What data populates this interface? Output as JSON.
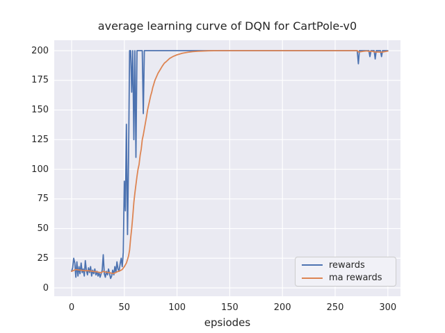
{
  "figure": {
    "background": "#ffffff",
    "axes_background": "#eaeaf2",
    "grid_color": "#ffffff",
    "text_color": "#262626"
  },
  "chart_data": {
    "type": "line",
    "title": "average learning curve of DQN for CartPole-v0",
    "xlabel": "epsiodes",
    "ylabel": "",
    "xlim": [
      -16.5,
      312
    ],
    "ylim": [
      -7,
      208.8
    ],
    "xticks": [
      0,
      50,
      100,
      150,
      200,
      250,
      300
    ],
    "yticks": [
      0,
      25,
      50,
      75,
      100,
      125,
      150,
      175,
      200
    ],
    "grid": true,
    "legend_position": "lower right",
    "series": [
      {
        "name": "rewards",
        "color": "#4C72B0",
        "points": [
          [
            0,
            14
          ],
          [
            1,
            17
          ],
          [
            2,
            25
          ],
          [
            3,
            21
          ],
          [
            4,
            9
          ],
          [
            5,
            22
          ],
          [
            6,
            10
          ],
          [
            7,
            18
          ],
          [
            8,
            12
          ],
          [
            9,
            21
          ],
          [
            10,
            13
          ],
          [
            11,
            16
          ],
          [
            12,
            10
          ],
          [
            13,
            23
          ],
          [
            14,
            15
          ],
          [
            15,
            11
          ],
          [
            16,
            17
          ],
          [
            17,
            13
          ],
          [
            18,
            18
          ],
          [
            19,
            10
          ],
          [
            20,
            15
          ],
          [
            21,
            12
          ],
          [
            22,
            16
          ],
          [
            23,
            11
          ],
          [
            24,
            14
          ],
          [
            25,
            10
          ],
          [
            26,
            13
          ],
          [
            27,
            9
          ],
          [
            28,
            12
          ],
          [
            29,
            15
          ],
          [
            30,
            28
          ],
          [
            31,
            12
          ],
          [
            32,
            9
          ],
          [
            33,
            14
          ],
          [
            34,
            11
          ],
          [
            35,
            16
          ],
          [
            36,
            12
          ],
          [
            37,
            8
          ],
          [
            38,
            10
          ],
          [
            39,
            15
          ],
          [
            40,
            11
          ],
          [
            41,
            18
          ],
          [
            42,
            13
          ],
          [
            43,
            22
          ],
          [
            44,
            16
          ],
          [
            45,
            14
          ],
          [
            46,
            20
          ],
          [
            47,
            25
          ],
          [
            48,
            18
          ],
          [
            49,
            30
          ],
          [
            50,
            90
          ],
          [
            51,
            65
          ],
          [
            52,
            138
          ],
          [
            53,
            45
          ],
          [
            54,
            110
          ],
          [
            55,
            200
          ],
          [
            56,
            200
          ],
          [
            57,
            165
          ],
          [
            58,
            200
          ],
          [
            59,
            125
          ],
          [
            60,
            200
          ],
          [
            61,
            110
          ],
          [
            62,
            200
          ],
          [
            67,
            200
          ],
          [
            68,
            147
          ],
          [
            69,
            200
          ],
          [
            271,
            200
          ],
          [
            272,
            189
          ],
          [
            273,
            200
          ],
          [
            282,
            200
          ],
          [
            283,
            195
          ],
          [
            284,
            200
          ],
          [
            287,
            200
          ],
          [
            288,
            193
          ],
          [
            289,
            200
          ],
          [
            293,
            200
          ],
          [
            294,
            195
          ],
          [
            295,
            200
          ],
          [
            300,
            200
          ]
        ]
      },
      {
        "name": "ma rewards",
        "color": "#DD8452",
        "points": [
          [
            0,
            14
          ],
          [
            4,
            15.5
          ],
          [
            8,
            15
          ],
          [
            12,
            14.5
          ],
          [
            16,
            14.5
          ],
          [
            20,
            14
          ],
          [
            24,
            13.5
          ],
          [
            28,
            12.8
          ],
          [
            30,
            14
          ],
          [
            33,
            13.2
          ],
          [
            36,
            13
          ],
          [
            38,
            12.3
          ],
          [
            40,
            12.2
          ],
          [
            43,
            13.5
          ],
          [
            46,
            14.5
          ],
          [
            48,
            15.5
          ],
          [
            50,
            18
          ],
          [
            52,
            21
          ],
          [
            53,
            24
          ],
          [
            54,
            27
          ],
          [
            55,
            32
          ],
          [
            56,
            42
          ],
          [
            57,
            50
          ],
          [
            58,
            60
          ],
          [
            59,
            72
          ],
          [
            60,
            80
          ],
          [
            61,
            87
          ],
          [
            62,
            94
          ],
          [
            63,
            100
          ],
          [
            64,
            104
          ],
          [
            65,
            112
          ],
          [
            66,
            117
          ],
          [
            67,
            125
          ],
          [
            68,
            129
          ],
          [
            69,
            134
          ],
          [
            70,
            139
          ],
          [
            71,
            144
          ],
          [
            72,
            150
          ],
          [
            73,
            154
          ],
          [
            74,
            158
          ],
          [
            75,
            162
          ],
          [
            76,
            165
          ],
          [
            77,
            169
          ],
          [
            78,
            172
          ],
          [
            79,
            175
          ],
          [
            80,
            177
          ],
          [
            82,
            181
          ],
          [
            84,
            184
          ],
          [
            86,
            187
          ],
          [
            88,
            189.5
          ],
          [
            90,
            191
          ],
          [
            93,
            193.5
          ],
          [
            96,
            195
          ],
          [
            100,
            196.5
          ],
          [
            105,
            197.8
          ],
          [
            110,
            198.6
          ],
          [
            115,
            199.2
          ],
          [
            120,
            199.5
          ],
          [
            130,
            199.9
          ],
          [
            140,
            200
          ],
          [
            271,
            200
          ],
          [
            272,
            198.9
          ],
          [
            274,
            199.1
          ],
          [
            277,
            199.5
          ],
          [
            280,
            199.8
          ],
          [
            283,
            199.3
          ],
          [
            285,
            199.5
          ],
          [
            288,
            198.8
          ],
          [
            290,
            199
          ],
          [
            294,
            198.6
          ],
          [
            296,
            199
          ],
          [
            300,
            199.7
          ]
        ]
      }
    ]
  },
  "legend": {
    "items": [
      {
        "label": "rewards",
        "color": "#4C72B0"
      },
      {
        "label": "ma rewards",
        "color": "#DD8452"
      }
    ]
  }
}
